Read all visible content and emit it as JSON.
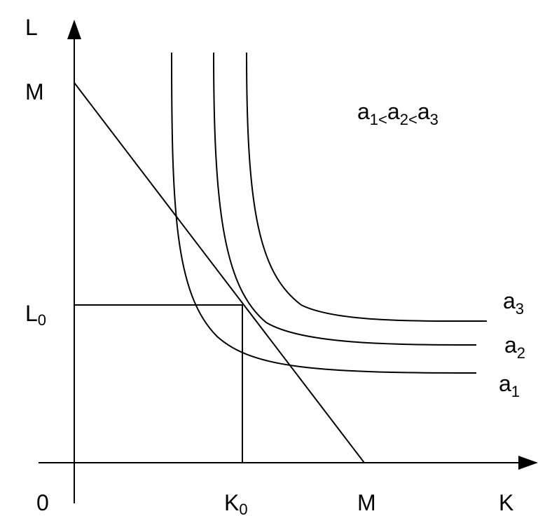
{
  "axes": {
    "y_label": "L",
    "x_label": "K",
    "origin": "0"
  },
  "ticks": {
    "y_top": "M",
    "x_right": "M",
    "l0": {
      "base": "L",
      "sub": "0"
    },
    "k0": {
      "base": "K",
      "sub": "0"
    }
  },
  "curves": [
    {
      "base": "a",
      "sub": "1"
    },
    {
      "base": "a",
      "sub": "2"
    },
    {
      "base": "a",
      "sub": "3"
    }
  ],
  "relation": {
    "operator": "<"
  }
}
